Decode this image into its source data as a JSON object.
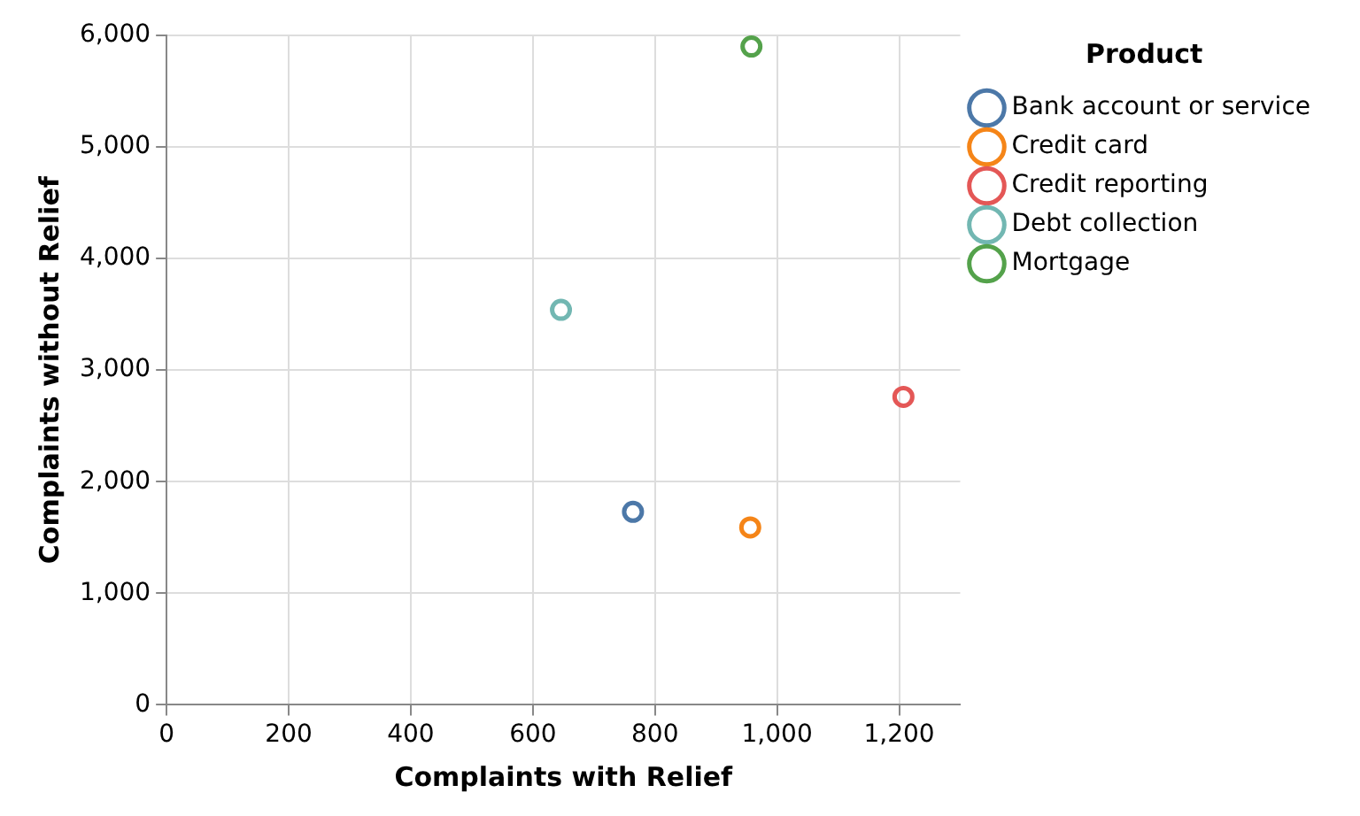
{
  "chart_data": {
    "type": "scatter",
    "xlabel": "Complaints with Relief",
    "ylabel": "Complaints without Relief",
    "legend_title": "Product",
    "legend": "top right",
    "grid": true,
    "marker": "circle",
    "xlim": [
      0,
      1300
    ],
    "xticks": [
      0,
      200,
      400,
      600,
      800,
      {
        "value": 1000,
        "label": "1,000"
      },
      {
        "value": 1200,
        "label": "1,200"
      }
    ],
    "ylim": [
      0,
      6000
    ],
    "yticks": [
      0,
      {
        "value": 1000,
        "label": "1,000"
      },
      {
        "value": 2000,
        "label": "2,000"
      },
      {
        "value": 3000,
        "label": "3,000"
      },
      {
        "value": 4000,
        "label": "4,000"
      },
      {
        "value": 5000,
        "label": "5,000"
      },
      {
        "value": 6000,
        "label": "6,000"
      }
    ],
    "series": [
      {
        "name": "Bank account or service",
        "color": "#4c78a8",
        "x": [
          764
        ],
        "values": [
          1730
        ]
      },
      {
        "name": "Credit card",
        "color": "#f58518",
        "x": [
          956
        ],
        "values": [
          1590
        ]
      },
      {
        "name": "Credit reporting",
        "color": "#e45756",
        "x": [
          1207
        ],
        "values": [
          2760
        ]
      },
      {
        "name": "Debt collection",
        "color": "#72b7b2",
        "x": [
          646
        ],
        "values": [
          3540
        ]
      },
      {
        "name": "Mortgage",
        "color": "#54a24b",
        "x": [
          958
        ],
        "values": [
          5900
        ]
      }
    ]
  }
}
